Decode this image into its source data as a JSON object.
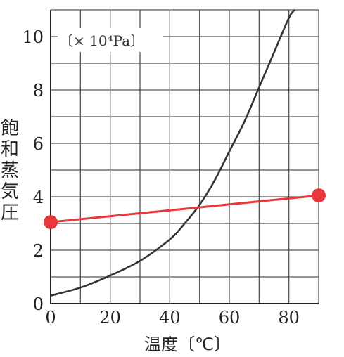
{
  "chart_data": {
    "type": "line",
    "title": "",
    "unit_label": "〔× 10⁴Pa〕",
    "xlabel": "温度〔℃〕",
    "ylabel": "飽和蒸気圧",
    "xlim": [
      0,
      90
    ],
    "ylim": [
      0,
      11
    ],
    "grid": true,
    "x_ticks": [
      0,
      20,
      40,
      60,
      80
    ],
    "y_ticks": [
      0,
      2,
      4,
      6,
      8,
      10
    ],
    "series": [
      {
        "color": "#333333",
        "x": [
          0,
          10,
          20,
          30,
          40,
          45,
          50,
          55,
          60,
          65,
          70,
          75,
          80,
          82
        ],
        "y": [
          0.3,
          0.6,
          1.05,
          1.6,
          2.4,
          3.0,
          3.7,
          4.6,
          5.7,
          6.8,
          8.1,
          9.4,
          10.7,
          11.0
        ]
      },
      {
        "color": "#e8383c",
        "marker": "circle",
        "x": [
          0,
          90
        ],
        "y": [
          3.05,
          4.05
        ]
      }
    ]
  }
}
